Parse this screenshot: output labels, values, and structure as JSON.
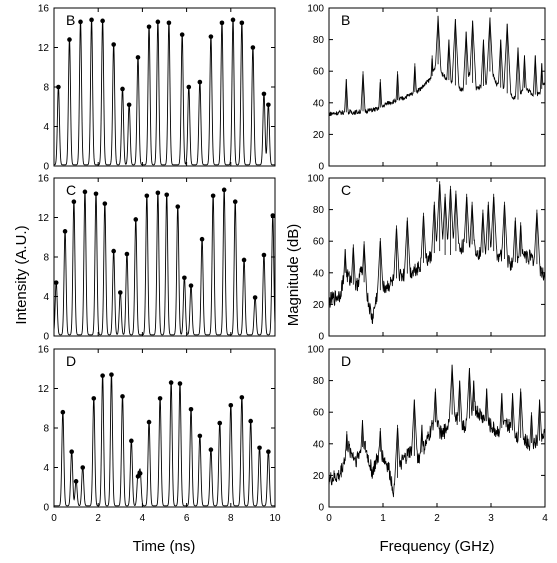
{
  "figure": {
    "left_xlabel": "Time (ns)",
    "left_ylabel": "Intensity (A.U.)",
    "right_xlabel": "Frequency (GHz)",
    "right_ylabel": "Magnitude (dB)"
  },
  "chart_data": [
    {
      "type": "line",
      "panel_label": "B",
      "xlabel": "",
      "ylabel": "Intensity (A.U.)",
      "xlim": [
        0,
        10
      ],
      "ylim": [
        0,
        16
      ],
      "xticks": [
        0,
        2,
        4,
        6,
        8,
        10
      ],
      "yticks": [
        0,
        4,
        8,
        12,
        16
      ],
      "series": [
        {
          "peaks_x": [
            0.2,
            0.7,
            1.2,
            1.7,
            2.2,
            2.7,
            3.1,
            3.4,
            3.8,
            4.3,
            4.7,
            5.2,
            5.8,
            6.1,
            6.6,
            7.1,
            7.6,
            8.1,
            8.5,
            9.0,
            9.5,
            9.7
          ],
          "peaks_y": [
            8.0,
            12.8,
            14.6,
            14.8,
            14.7,
            12.3,
            7.8,
            6.2,
            11.0,
            14.1,
            14.6,
            14.5,
            13.3,
            8.0,
            8.5,
            13.1,
            14.5,
            14.8,
            14.5,
            12.0,
            7.3,
            6.2
          ]
        }
      ]
    },
    {
      "type": "line",
      "panel_label": "C",
      "xlabel": "",
      "ylabel": "Intensity (A.U.)",
      "xlim": [
        0,
        10
      ],
      "ylim": [
        0,
        16
      ],
      "xticks": [
        0,
        2,
        4,
        6,
        8,
        10
      ],
      "yticks": [
        0,
        4,
        8,
        12,
        16
      ],
      "series": [
        {
          "peaks_x": [
            0.1,
            0.5,
            0.9,
            1.4,
            1.9,
            2.3,
            2.7,
            3.0,
            3.3,
            3.7,
            4.2,
            4.7,
            5.1,
            5.6,
            5.9,
            6.2,
            6.7,
            7.2,
            7.7,
            8.2,
            8.6,
            9.1,
            9.5,
            9.9
          ],
          "peaks_y": [
            5.4,
            10.6,
            13.6,
            14.6,
            14.4,
            13.4,
            8.6,
            4.4,
            8.3,
            11.8,
            14.2,
            14.5,
            14.3,
            13.1,
            5.9,
            5.1,
            9.8,
            14.2,
            14.8,
            13.6,
            7.7,
            3.9,
            8.2,
            12.2
          ]
        }
      ]
    },
    {
      "type": "line",
      "panel_label": "D",
      "xlabel": "Time (ns)",
      "ylabel": "Intensity (A.U.)",
      "xlim": [
        0,
        10
      ],
      "ylim": [
        0,
        16
      ],
      "xticks": [
        0,
        2,
        4,
        6,
        8,
        10
      ],
      "yticks": [
        0,
        4,
        8,
        12,
        16
      ],
      "series": [
        {
          "peaks_x": [
            0.4,
            0.8,
            1.0,
            1.3,
            1.8,
            2.2,
            2.6,
            3.1,
            3.5,
            3.8,
            3.9,
            4.3,
            4.8,
            5.3,
            5.7,
            6.2,
            6.6,
            7.1,
            7.5,
            8.0,
            8.5,
            8.9,
            9.3,
            9.7
          ],
          "peaks_y": [
            9.6,
            5.6,
            2.6,
            4.0,
            11.0,
            13.3,
            13.4,
            11.2,
            6.7,
            3.1,
            3.4,
            8.6,
            11.0,
            12.6,
            12.5,
            9.9,
            7.2,
            5.8,
            8.5,
            10.3,
            11.1,
            8.7,
            6.0,
            5.6
          ]
        }
      ]
    },
    {
      "type": "line",
      "panel_label": "B",
      "xlabel": "",
      "ylabel": "Magnitude (dB)",
      "xlim": [
        0,
        4
      ],
      "ylim": [
        0,
        100
      ],
      "xticks": [
        0,
        1,
        2,
        3,
        4
      ],
      "yticks": [
        0,
        20,
        40,
        60,
        80,
        100
      ],
      "series": [
        {
          "x": [
            0.0,
            0.3,
            0.5,
            0.7,
            0.9,
            1.0,
            1.1,
            1.3,
            1.5,
            1.7,
            1.9,
            2.0,
            2.1,
            2.3,
            2.5,
            2.6,
            2.7,
            2.9,
            3.0,
            3.1,
            3.3,
            3.5,
            3.6,
            3.8,
            3.9,
            4.0
          ],
          "y": [
            33,
            34,
            34,
            35,
            36,
            38,
            40,
            42,
            45,
            49,
            56,
            66,
            58,
            52,
            47,
            58,
            49,
            51,
            62,
            52,
            46,
            42,
            50,
            45,
            46,
            53
          ],
          "peaks_x": [
            0.32,
            0.63,
            0.95,
            1.27,
            1.59,
            1.91,
            2.02,
            2.22,
            2.34,
            2.54,
            2.66,
            2.86,
            2.98,
            3.18,
            3.3,
            3.5,
            3.62,
            3.82,
            3.94
          ],
          "peaks_y": [
            55,
            60,
            55,
            60,
            65,
            70,
            95,
            80,
            93,
            85,
            92,
            80,
            94,
            80,
            90,
            75,
            70,
            70,
            65
          ]
        }
      ]
    },
    {
      "type": "line",
      "panel_label": "C",
      "xlabel": "",
      "ylabel": "Magnitude (dB)",
      "xlim": [
        0,
        4
      ],
      "ylim": [
        0,
        100
      ],
      "xticks": [
        0,
        1,
        2,
        3,
        4
      ],
      "yticks": [
        0,
        20,
        40,
        60,
        80,
        100
      ],
      "series": [
        {
          "x": [
            0.0,
            0.2,
            0.3,
            0.5,
            0.6,
            0.8,
            0.9,
            1.1,
            1.3,
            1.5,
            1.7,
            1.9,
            2.0,
            2.2,
            2.4,
            2.6,
            2.8,
            3.0,
            3.2,
            3.4,
            3.6,
            3.8,
            4.0
          ],
          "y": [
            22,
            26,
            40,
            30,
            42,
            10,
            28,
            32,
            38,
            40,
            45,
            50,
            55,
            50,
            55,
            60,
            52,
            55,
            50,
            45,
            52,
            48,
            38
          ],
          "peaks_x": [
            0.3,
            0.45,
            0.65,
            0.95,
            1.25,
            1.45,
            1.75,
            1.95,
            2.05,
            2.15,
            2.25,
            2.35,
            2.55,
            2.65,
            2.85,
            2.95,
            3.05,
            3.25,
            3.45,
            3.55,
            3.85
          ],
          "peaks_y": [
            55,
            58,
            60,
            62,
            70,
            75,
            78,
            85,
            98,
            90,
            95,
            92,
            90,
            85,
            80,
            85,
            90,
            85,
            75,
            72,
            80
          ]
        }
      ]
    },
    {
      "type": "line",
      "panel_label": "D",
      "xlabel": "Frequency (GHz)",
      "ylabel": "Magnitude (dB)",
      "xlim": [
        0,
        4
      ],
      "ylim": [
        0,
        100
      ],
      "xticks": [
        0,
        1,
        2,
        3,
        4
      ],
      "yticks": [
        0,
        20,
        40,
        60,
        80,
        100
      ],
      "series": [
        {
          "x": [
            0.0,
            0.2,
            0.35,
            0.5,
            0.65,
            0.8,
            0.95,
            1.1,
            1.2,
            1.35,
            1.5,
            1.65,
            1.8,
            1.95,
            2.1,
            2.3,
            2.5,
            2.7,
            2.9,
            3.1,
            3.3,
            3.5,
            3.7,
            3.9,
            4.0
          ],
          "y": [
            17,
            20,
            38,
            30,
            40,
            22,
            35,
            25,
            10,
            28,
            35,
            30,
            40,
            55,
            45,
            60,
            50,
            62,
            55,
            48,
            52,
            45,
            40,
            42,
            45
          ],
          "peaks_x": [
            0.33,
            0.62,
            0.95,
            1.27,
            1.58,
            1.72,
            1.97,
            2.28,
            2.42,
            2.6,
            2.68,
            2.92,
            3.2,
            3.4,
            3.55,
            3.75,
            3.9
          ],
          "peaks_y": [
            48,
            55,
            50,
            52,
            68,
            52,
            75,
            90,
            80,
            88,
            80,
            75,
            72,
            72,
            75,
            60,
            68
          ]
        }
      ]
    }
  ]
}
